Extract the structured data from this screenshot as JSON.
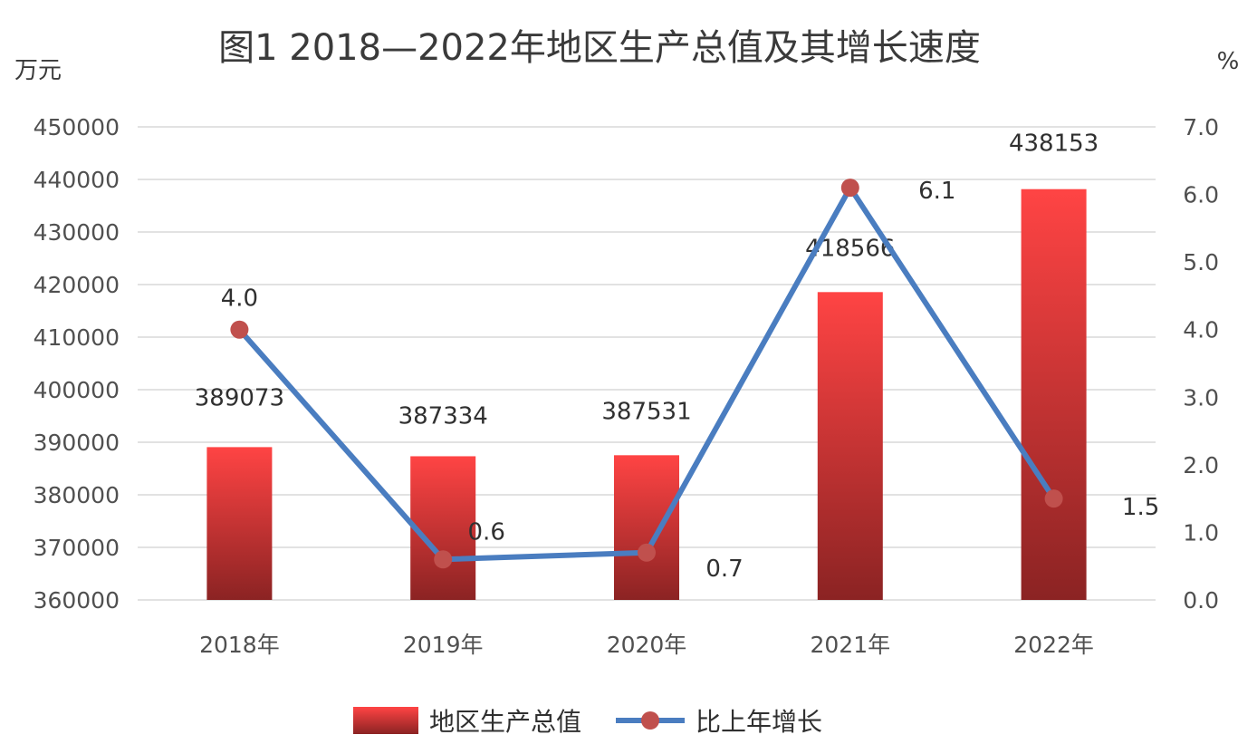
{
  "chart_data": {
    "type": "bar+line",
    "title": "图1 2018—2022年地区生产总值及其增长速度",
    "categories": [
      "2018年",
      "2019年",
      "2020年",
      "2021年",
      "2022年"
    ],
    "series": [
      {
        "name": "地区生产总值",
        "type": "bar",
        "axis": "left",
        "values": [
          389073,
          387334,
          387531,
          418566,
          438153
        ],
        "labels": [
          "389073",
          "387334",
          "387531",
          "418566",
          "438153"
        ]
      },
      {
        "name": "比上年增长",
        "type": "line",
        "axis": "right",
        "values": [
          4.0,
          0.6,
          0.7,
          6.1,
          1.5
        ],
        "labels": [
          "4.0",
          "0.6",
          "0.7",
          "6.1",
          "1.5"
        ]
      }
    ],
    "y_left": {
      "unit": "万元",
      "ylim": [
        360000,
        450000
      ],
      "ticks": [
        "360000",
        "370000",
        "380000",
        "390000",
        "400000",
        "410000",
        "420000",
        "430000",
        "440000",
        "450000"
      ]
    },
    "y_right": {
      "unit": "%",
      "ylim": [
        0,
        7
      ],
      "ticks": [
        "0.0",
        "1.0",
        "2.0",
        "3.0",
        "4.0",
        "5.0",
        "6.0",
        "7.0"
      ]
    },
    "grid": true,
    "legend": "bottom",
    "colors": {
      "bar_top": "#ff4444",
      "bar_bottom": "#8b2323",
      "line": "#4a7dc0",
      "marker": "#c0504d",
      "grid": "#d9d9d9"
    }
  }
}
